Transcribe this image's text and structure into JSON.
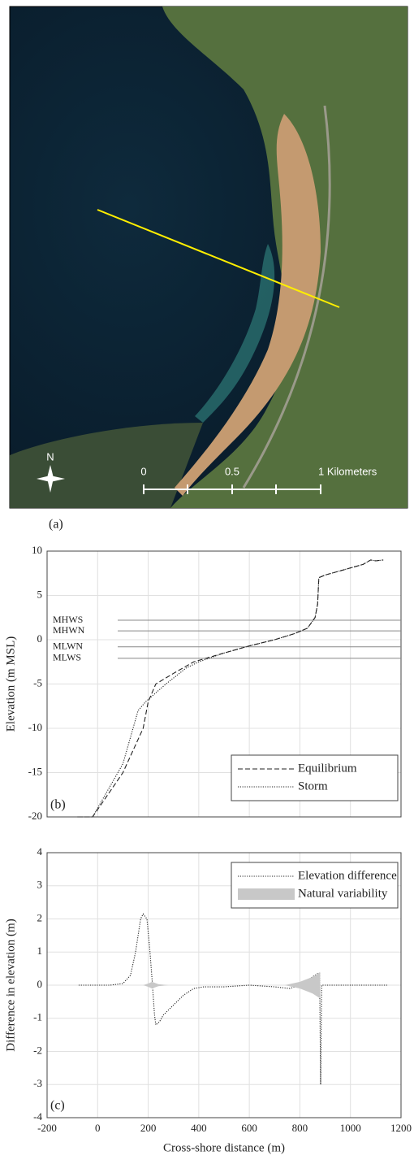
{
  "image_panel": {
    "panel_label": "(a)",
    "north": "N",
    "scale_labels": [
      "0",
      "0.5",
      "1 Kilometers"
    ]
  },
  "chart_data": [
    {
      "type": "line",
      "panel_label": "(b)",
      "ylabel": "Elevation (m MSL)",
      "xlim": [
        -200,
        1200
      ],
      "xticks": [
        -200,
        0,
        200,
        400,
        600,
        800,
        1000,
        1200
      ],
      "ylim": [
        -20,
        10
      ],
      "yticks": [
        10,
        5,
        0,
        -5,
        -10,
        -15,
        -20
      ],
      "grid": true,
      "legend": "lower right",
      "reference_lines": [
        {
          "label": "MHWS",
          "value": 2.2
        },
        {
          "label": "MHWN",
          "value": 1.0
        },
        {
          "label": "MLWN",
          "value": -0.8
        },
        {
          "label": "MLWS",
          "value": -2.1
        }
      ],
      "series": [
        {
          "name": "Equilibrium",
          "color": "#222222",
          "dash": "dashed",
          "x": [
            -80,
            -20,
            100,
            180,
            200,
            230,
            300,
            380,
            500,
            600,
            700,
            780,
            830,
            860,
            870,
            875,
            900,
            950,
            1000,
            1050,
            1080,
            1100,
            1130
          ],
          "values": [
            -20,
            -20,
            -15,
            -10,
            -7,
            -5,
            -3.8,
            -2.5,
            -1.5,
            -0.7,
            0,
            0.7,
            1.3,
            2.5,
            4,
            7,
            7.3,
            7.7,
            8.1,
            8.5,
            9,
            8.9,
            9
          ]
        },
        {
          "name": "Storm",
          "color": "#222222",
          "dash": "dotted",
          "x": [
            -80,
            -20,
            100,
            140,
            160,
            190,
            270,
            350,
            400,
            500,
            600,
            700,
            780,
            830,
            860,
            870,
            875,
            900,
            950,
            1000,
            1050,
            1080,
            1100,
            1130
          ],
          "values": [
            -20,
            -20,
            -14,
            -10,
            -8,
            -7,
            -5,
            -3.2,
            -2.5,
            -1.5,
            -0.7,
            0,
            0.7,
            1.3,
            2.5,
            4,
            7,
            7.3,
            7.7,
            8.1,
            8.5,
            9,
            8.9,
            9
          ]
        }
      ]
    },
    {
      "type": "line",
      "panel_label": "(c)",
      "xlabel": "Cross-shore distance (m)",
      "ylabel": "Difference in elevation (m)",
      "xlim": [
        -200,
        1200
      ],
      "xticks": [
        -200,
        0,
        200,
        400,
        600,
        800,
        1000,
        1200
      ],
      "ylim": [
        -4,
        4
      ],
      "yticks": [
        4,
        3,
        2,
        1,
        0,
        -1,
        -2,
        -3,
        -4
      ],
      "grid": true,
      "legend": "upper right",
      "series": [
        {
          "name": "Elevation difference",
          "color": "#222222",
          "dash": "dotted",
          "x": [
            -75,
            50,
            100,
            130,
            150,
            170,
            180,
            195,
            205,
            215,
            225,
            230,
            245,
            260,
            300,
            340,
            380,
            420,
            500,
            600,
            700,
            760,
            800,
            840,
            870,
            878,
            882,
            886,
            1150
          ],
          "values": [
            0,
            0,
            0.05,
            0.3,
            1.0,
            2.0,
            2.15,
            2.0,
            1.2,
            0.2,
            -0.9,
            -1.2,
            -1.1,
            -0.9,
            -0.6,
            -0.3,
            -0.1,
            -0.05,
            -0.05,
            0,
            -0.05,
            -0.1,
            0,
            0.2,
            0.35,
            0.35,
            -3.0,
            0,
            0
          ]
        },
        {
          "name": "Natural variability",
          "type": "band",
          "color": "#c8c8c8",
          "x": [
            180,
            200,
            215,
            240,
            280,
            740,
            800,
            850,
            880
          ],
          "upper": [
            0,
            0.05,
            0.1,
            0.03,
            0,
            0,
            0.1,
            0.25,
            0.4
          ],
          "lower": [
            0,
            -0.05,
            -0.1,
            -0.03,
            0,
            0,
            -0.1,
            -0.25,
            -0.4
          ]
        }
      ]
    }
  ]
}
